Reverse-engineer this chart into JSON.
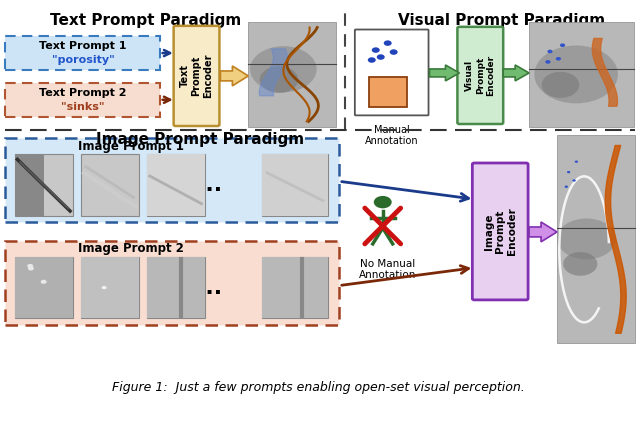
{
  "fig_width": 6.4,
  "fig_height": 4.44,
  "dpi": 100,
  "bg_color": "#ffffff",
  "caption": "Figure 1:  Just a few prompts enabling open-set visual perception.",
  "top_left_title": "Text Prompt Paradigm",
  "top_right_title": "Visual Prompt Paradigm",
  "bottom_title": "Image Prompt Paradigm",
  "text_box1_fill": "#cce4f6",
  "text_box1_edge": "#3a7abf",
  "text_box2_fill": "#f6ddd0",
  "text_box2_edge": "#b05530",
  "text_enc_fill": "#f8ecc8",
  "text_enc_edge": "#b89030",
  "vis_enc_fill": "#d0ecd0",
  "vis_enc_edge": "#4a8a4a",
  "img_enc_fill": "#e8d0f0",
  "img_enc_edge": "#8030b0",
  "img_p1_fill": "#d4e8f8",
  "img_p1_edge": "#2a5a9a",
  "img_p2_fill": "#f8ddd0",
  "img_p2_edge": "#a04020",
  "arrow_blue": "#1a3a8a",
  "arrow_brown": "#7a2808",
  "arrow_green": "#3a7a3a",
  "arrow_orange_fill": "#e8a030",
  "arrow_orange_edge": "#a06010",
  "arrow_purple": "#8030b0",
  "no_x_red": "#cc1111",
  "person_color": "#2a6a2a",
  "divider": "#444444",
  "scan_bg": "#aaaaaa"
}
